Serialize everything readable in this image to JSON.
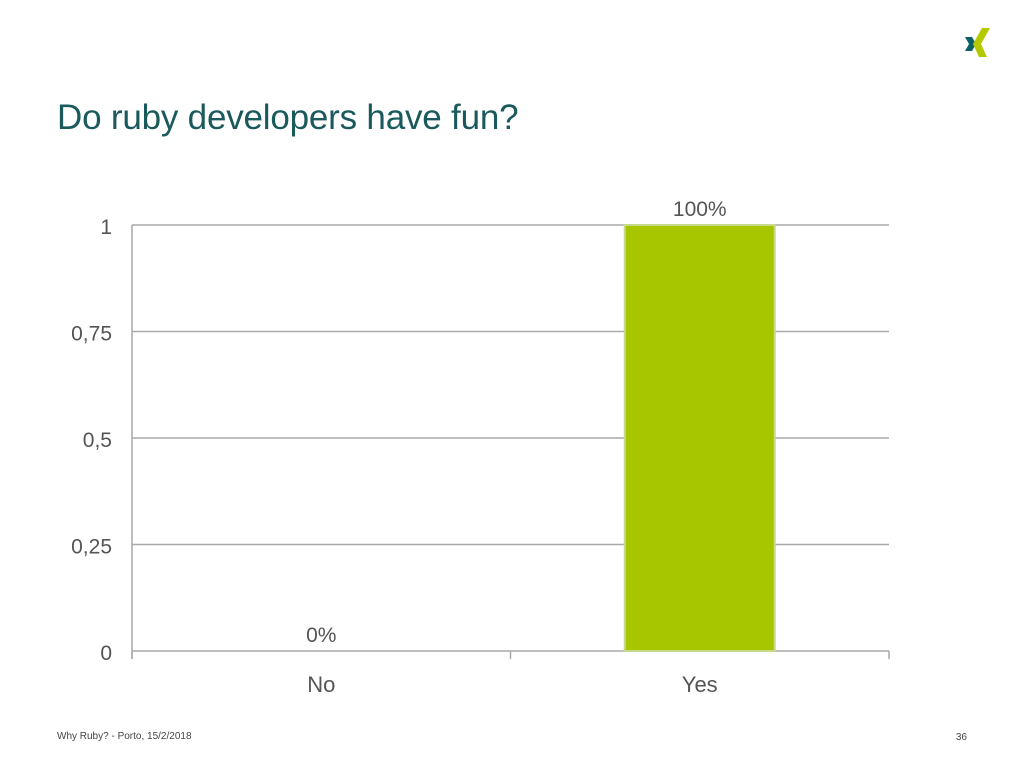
{
  "slide": {
    "title": "Do ruby developers have fun?",
    "footer_text": "Why Ruby? - Porto, 15/2/2018",
    "page_number": "36",
    "logo_icon": "xing-logo-icon"
  },
  "colors": {
    "title": "#1a5a5c",
    "bar": "#a8c600",
    "bar_border": "#c7d98a",
    "logo_dark": "#0a6165",
    "logo_light": "#b5c900",
    "grid": "#a9a9a9",
    "text": "#555555"
  },
  "chart_data": {
    "type": "bar",
    "categories": [
      "No",
      "Yes"
    ],
    "values": [
      0,
      1
    ],
    "data_labels": [
      "0%",
      "100%"
    ],
    "y_tick_labels": [
      "0",
      "0,25",
      "0,5",
      "0,75",
      "1"
    ],
    "y_ticks": [
      0,
      0.25,
      0.5,
      0.75,
      1
    ],
    "ylim": [
      0,
      1
    ],
    "grid": true,
    "legend": "none",
    "title": "",
    "xlabel": "",
    "ylabel": ""
  }
}
